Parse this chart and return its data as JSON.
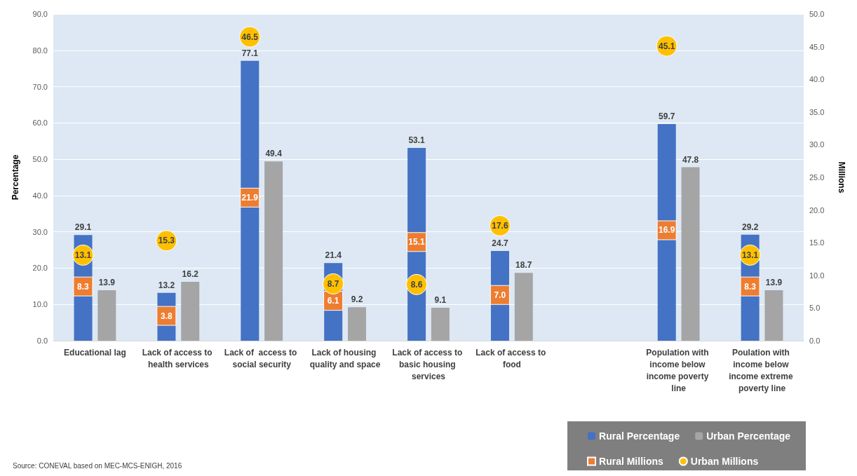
{
  "chart_data": {
    "type": "bar",
    "categories": [
      "Educational lag",
      "Lack of access to health services",
      "Lack of  access to social security",
      "Lack of housing quality and space",
      "Lack of access to basic housing services",
      "Lack of access to food",
      null,
      "Population with income below income poverty line",
      "Poulation with income below income extreme poverty line"
    ],
    "series": [
      {
        "name": "Rural Percentage",
        "color": "#4472c4",
        "values": [
          29.1,
          13.2,
          77.1,
          21.4,
          53.1,
          24.7,
          null,
          59.7,
          29.2
        ],
        "value_labels": [
          "29.1",
          "13.2",
          "77.1",
          "21.4",
          "53.1",
          "24.7",
          null,
          "59.7",
          "29.2"
        ]
      },
      {
        "name": "Urban Percentage",
        "color": "#a5a5a5",
        "values": [
          13.9,
          16.2,
          49.4,
          9.2,
          9.1,
          18.7,
          null,
          47.8,
          13.9
        ],
        "value_labels": [
          "13.9",
          "16.2",
          "49.4",
          "9.2",
          "9.1",
          "18.7",
          null,
          "47.8",
          "13.9"
        ]
      },
      {
        "name": "Rural Millions",
        "type": "scatter",
        "axis": "y2",
        "marker": "square",
        "color": "#ed7d31",
        "values": [
          8.3,
          3.8,
          21.9,
          6.1,
          15.1,
          7.0,
          null,
          16.9,
          8.3
        ],
        "value_labels": [
          "8.3",
          "3.8",
          "21.9",
          "6.1",
          "15.1",
          "7.0",
          null,
          "16.9",
          "8.3"
        ]
      },
      {
        "name": "Urban Millions",
        "type": "scatter",
        "axis": "y2",
        "marker": "circle",
        "color": "#ffc000",
        "values": [
          13.1,
          15.3,
          46.5,
          8.7,
          8.6,
          17.6,
          null,
          45.1,
          13.1
        ],
        "value_labels": [
          "13.1",
          "15.3",
          "46.5",
          "8.7",
          "8.6",
          "17.6",
          null,
          "45.1",
          "13.1"
        ]
      }
    ],
    "ylabel": "Percentage",
    "y2label": "Millions",
    "ylim": [
      0,
      90
    ],
    "yticks": [
      {
        "value": 0,
        "label": "0.0"
      },
      {
        "value": 10,
        "label": "10.0"
      },
      {
        "value": 20,
        "label": "20.0"
      },
      {
        "value": 30,
        "label": "30.0"
      },
      {
        "value": 40,
        "label": "40.0"
      },
      {
        "value": 50,
        "label": "50.0"
      },
      {
        "value": 60,
        "label": "60.0"
      },
      {
        "value": 70,
        "label": "70.0"
      },
      {
        "value": 80,
        "label": "80.0"
      },
      {
        "value": 90,
        "label": "90.0"
      }
    ],
    "y2lim": [
      0,
      50
    ],
    "y2ticks": [
      {
        "value": 0,
        "label": "0.0"
      },
      {
        "value": 5,
        "label": "5.0"
      },
      {
        "value": 10,
        "label": "10.0"
      },
      {
        "value": 15,
        "label": "15.0"
      },
      {
        "value": 20,
        "label": "20.0"
      },
      {
        "value": 25,
        "label": "25.0"
      },
      {
        "value": 30,
        "label": "30.0"
      },
      {
        "value": 35,
        "label": "35.0"
      },
      {
        "value": 40,
        "label": "40.0"
      },
      {
        "value": 45,
        "label": "45.0"
      },
      {
        "value": 50,
        "label": "50.0"
      }
    ],
    "grid": "y",
    "legend": "bottom right",
    "annotations": [
      "Source: CONEVAL based on MEC-MCS-ENIGH, 2016"
    ]
  }
}
